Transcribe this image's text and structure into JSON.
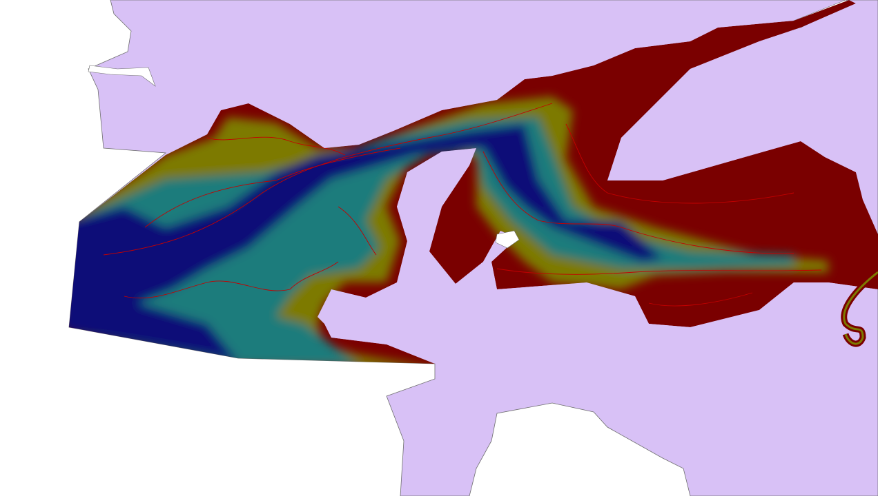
{
  "map": {
    "colors": {
      "sea_background": "#ffffff",
      "land": "#d8c1f6",
      "coastline": "#6e6e6e",
      "depth_shallow": "#7a0000",
      "depth_mid_shallow": "#7d7a00",
      "depth_mid": "#1f7b7b",
      "depth_deep": "#0a0a78",
      "contour": "#c40000"
    }
  }
}
